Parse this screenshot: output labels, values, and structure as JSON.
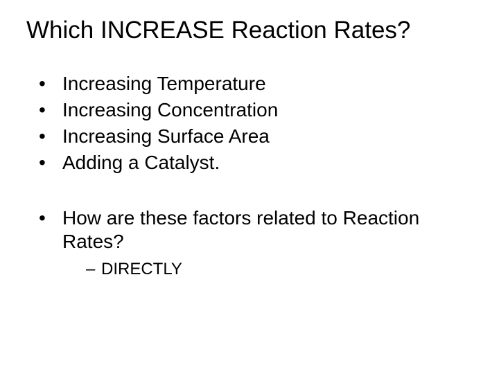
{
  "title": "Which INCREASE Reaction Rates?",
  "group1": {
    "items": [
      "Increasing Temperature",
      "Increasing Concentration",
      "Increasing Surface Area",
      "Adding a Catalyst."
    ]
  },
  "group2": {
    "question": "How are these factors related to Reaction Rates?",
    "answer": "DIRECTLY"
  },
  "colors": {
    "background": "#ffffff",
    "text": "#000000"
  },
  "fontsize": {
    "title": 35,
    "body": 28,
    "sub": 24
  }
}
